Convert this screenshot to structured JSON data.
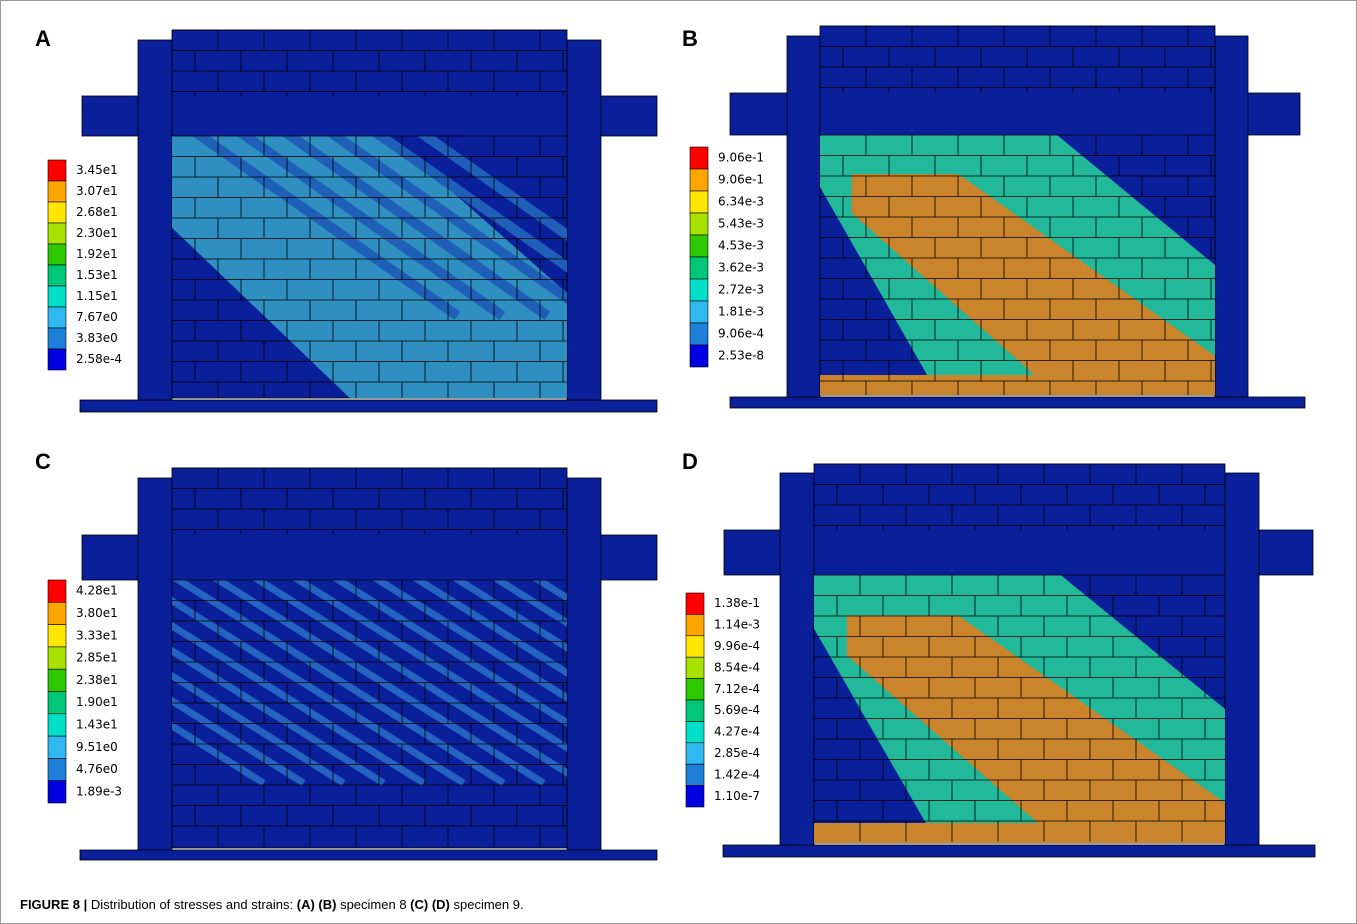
{
  "panels": [
    {
      "label": "A",
      "legend": [
        "3.45e1",
        "3.07e1",
        "2.68e1",
        "2.30e1",
        "1.92e1",
        "1.53e1",
        "1.15e1",
        "7.67e0",
        "3.83e0",
        "2.58e-4"
      ]
    },
    {
      "label": "B",
      "legend": [
        "9.06e-1",
        "9.06e-1",
        "6.34e-3",
        "5.43e-3",
        "4.53e-3",
        "3.62e-3",
        "2.72e-3",
        "1.81e-3",
        "9.06e-4",
        "2.53e-8"
      ]
    },
    {
      "label": "C",
      "legend": [
        "4.28e1",
        "3.80e1",
        "3.33e1",
        "2.85e1",
        "2.38e1",
        "1.90e1",
        "1.43e1",
        "9.51e0",
        "4.76e0",
        "1.89e-3"
      ]
    },
    {
      "label": "D",
      "legend": [
        "1.38e-1",
        "1.14e-3",
        "9.96e-4",
        "8.54e-4",
        "7.12e-4",
        "5.69e-4",
        "4.27e-4",
        "2.85e-4",
        "1.42e-4",
        "1.10e-7"
      ]
    }
  ],
  "caption": [
    {
      "text": "FIGURE 8 |",
      "bold": true
    },
    {
      "text": " Distribution of stresses and strains: "
    },
    {
      "text": "(A) (B)",
      "bold": true
    },
    {
      "text": " specimen 8 "
    },
    {
      "text": "(C) (D)",
      "bold": true
    },
    {
      "text": " specimen 9."
    }
  ]
}
